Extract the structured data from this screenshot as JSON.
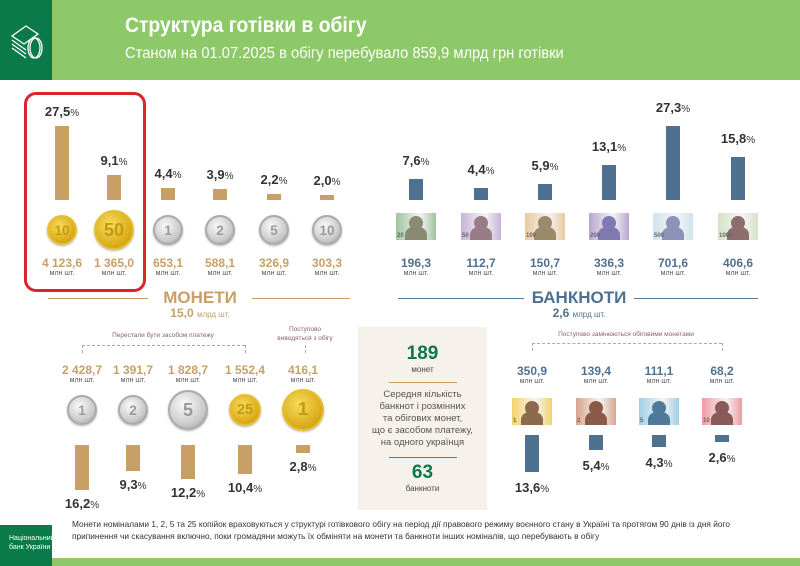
{
  "header": {
    "title": "Структура готівки в обігу",
    "subtitle": "Станом на 01.07.2025  в обігу перебувало 859,9 млрд грн готівки",
    "icon": "cash-coins-icon"
  },
  "colors": {
    "header_green": "#8dc968",
    "dark_green": "#0b7a4a",
    "coin_bar": "#c8a065",
    "note_bar": "#4f7190",
    "highlight": "#d9252b"
  },
  "unit": "млн шт.",
  "coins": {
    "title": "МОНЕТИ",
    "total": "15,0",
    "total_unit": "млрд шт."
  },
  "banknotes": {
    "title": "БАНКНОТИ",
    "total": "2,6",
    "total_unit": "млрд шт."
  },
  "labels": {
    "coins_stopped": "Перестали бути засобом платежу",
    "coins_withdrawn_1": "Поступово",
    "coins_withdrawn_2": "виводяться з обігу",
    "notes_replaced": "Поступово замінюються обіговими монетами"
  },
  "info": {
    "coins_num": "189",
    "coins_word": "монет",
    "text_1": "Середня кількість",
    "text_2": "банкнот і розмінних",
    "text_3": "та обігових монет,",
    "text_4": "що є засобом платежу,",
    "text_5": "на одного українця",
    "notes_num": "63",
    "notes_word": "банкноти"
  },
  "footer": {
    "logo_1": "Національний",
    "logo_2": "банк України",
    "note": "Монети номіналами 1, 2, 5 та 25 копійок враховуються у структурі готівкового обігу на період дії правового режиму воєнного стану в Україні та протягом 90 днів із дня його припинення чи скасування включно, поки громадяни можуть їх обміняти на  монети та  банкноти інших номіналів, що перебувають в обігу"
  },
  "chart_data": [
    {
      "type": "bar",
      "title": "",
      "categories": [
        "10",
        "50",
        "1",
        "2",
        "5",
        "10"
      ],
      "coin_type": [
        "gold",
        "gold",
        "silver",
        "silver",
        "silver",
        "silver"
      ],
      "values": [
        27.5,
        9.1,
        4.4,
        3.9,
        2.2,
        2.0
      ],
      "pct_labels": [
        "27,5",
        "9,1",
        "4,4",
        "3,9",
        "2,2",
        "2,0"
      ],
      "counts": [
        "4 123,6",
        "1 365,0",
        "653,1",
        "588,1",
        "326,9",
        "303,3"
      ],
      "highlighted": [
        "10",
        "50"
      ]
    },
    {
      "type": "bar",
      "title": "",
      "categories": [
        "20",
        "50",
        "100",
        "200",
        "500",
        "1000"
      ],
      "values": [
        7.6,
        4.4,
        5.9,
        13.1,
        27.3,
        15.8
      ],
      "pct_labels": [
        "7,6",
        "4,4",
        "5,9",
        "13,1",
        "27,3",
        "15,8"
      ],
      "counts": [
        "196,3",
        "112,7",
        "150,7",
        "336,3",
        "701,6",
        "406,6"
      ],
      "note_colors": [
        "#9fc4a0",
        "#c9b3d8",
        "#e9c9a0",
        "#b9a6d0",
        "#cfe3ee",
        "#d7e2c6"
      ],
      "silhouette": [
        "#8a8a70",
        "#9a7c86",
        "#9b8a6a",
        "#7f7ab0",
        "#8d93b8",
        "#8d6e6e"
      ]
    },
    {
      "type": "bar",
      "title": "",
      "categories": [
        "1",
        "2",
        "5",
        "25",
        "1"
      ],
      "coin_type": [
        "silver",
        "silver",
        "silver",
        "gold",
        "gold"
      ],
      "values": [
        16.2,
        9.3,
        12.2,
        10.4,
        2.8
      ],
      "pct_labels": [
        "16,2",
        "9,3",
        "12,2",
        "10,4",
        "2,8"
      ],
      "counts": [
        "2 428,7",
        "1 391,7",
        "1 828,7",
        "1 552,4",
        "416,1"
      ]
    },
    {
      "type": "bar",
      "title": "",
      "categories": [
        "1",
        "2",
        "5",
        "10"
      ],
      "values": [
        13.6,
        5.4,
        4.3,
        2.6
      ],
      "pct_labels": [
        "13,6",
        "5,4",
        "4,3",
        "2,6"
      ],
      "counts": [
        "350,9",
        "139,4",
        "111,1",
        "68,2"
      ],
      "note_colors": [
        "#f2d36a",
        "#d9a58c",
        "#9fd0e6",
        "#f09ba0"
      ],
      "silhouette": [
        "#8d6a4e",
        "#8a5a48",
        "#4f7a9a",
        "#8a5a58"
      ]
    }
  ]
}
